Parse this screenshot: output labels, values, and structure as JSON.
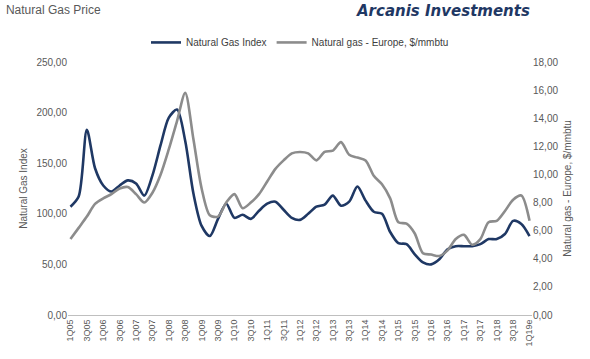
{
  "chart_data": {
    "type": "line",
    "title": "Natural Gas Price",
    "annotations": [
      {
        "text": "Arcanis Investments"
      }
    ],
    "y_label": "Natural Gas Index",
    "y2_label": "Natural gas - Europe, $/mmbtu",
    "categories": [
      "1Q05",
      null,
      "3Q05",
      null,
      "1Q06",
      null,
      "3Q06",
      null,
      "1Q07",
      null,
      "3Q07",
      null,
      "1Q08",
      null,
      "3Q08",
      null,
      "1Q09",
      null,
      "3Q09",
      null,
      "1Q10",
      null,
      "3Q10",
      null,
      "1Q11",
      null,
      "3Q11",
      null,
      "1Q12",
      null,
      "3Q12",
      null,
      "1Q13",
      null,
      "3Q13",
      null,
      "1Q14",
      null,
      "3Q14",
      null,
      "1Q15",
      null,
      "3Q15",
      null,
      "1Q16",
      null,
      "3Q16",
      null,
      "1Q17",
      null,
      "3Q17",
      null,
      "1Q18",
      null,
      "3Q18",
      null,
      "1Q19e"
    ],
    "series": [
      {
        "name": "Natural Gas Index",
        "color": "#1f3864",
        "line_style": "solid",
        "values": [
          107,
          117,
          183,
          145,
          128,
          122,
          128,
          133,
          130,
          118,
          138,
          168,
          195,
          203,
          172,
          120,
          88,
          78,
          95,
          110,
          96,
          99,
          95,
          103,
          110,
          112,
          104,
          96,
          94,
          100,
          107,
          109,
          118,
          108,
          112,
          127,
          113,
          102,
          100,
          82,
          71,
          70,
          60,
          52,
          50,
          55,
          65,
          68,
          68,
          68,
          70,
          75,
          75,
          80,
          93,
          90,
          78
        ]
      },
      {
        "name": "Natural gas - Europe, $/mmbtu",
        "color": "#8c8c8c",
        "line_style": "solid",
        "axis": "y2",
        "values": [
          5.4,
          6.2,
          7.0,
          7.9,
          8.3,
          8.6,
          9.0,
          9.1,
          8.6,
          8.0,
          8.7,
          10.0,
          11.8,
          13.8,
          15.8,
          12.5,
          9.0,
          7.1,
          7.0,
          8.0,
          8.6,
          7.6,
          8.0,
          8.6,
          9.5,
          10.4,
          11.0,
          11.5,
          11.6,
          11.5,
          11.0,
          11.6,
          11.7,
          12.3,
          11.4,
          11.2,
          11.0,
          9.9,
          9.3,
          8.3,
          6.6,
          6.5,
          5.8,
          4.4,
          4.3,
          4.2,
          4.6,
          5.4,
          5.7,
          5.0,
          5.4,
          6.6,
          6.7,
          7.4,
          8.2,
          8.5,
          6.7
        ]
      }
    ],
    "ylim": [
      0,
      250
    ],
    "yticks": [
      {
        "value": 0,
        "label": "0,00"
      },
      {
        "value": 50,
        "label": "50,00"
      },
      {
        "value": 100,
        "label": "100,00"
      },
      {
        "value": 150,
        "label": "150,00"
      },
      {
        "value": 200,
        "label": "200,00"
      },
      {
        "value": 250,
        "label": "250,00"
      }
    ],
    "y2lim": [
      0,
      18
    ],
    "y2ticks": [
      {
        "value": 0,
        "label": "0,00"
      },
      {
        "value": 2,
        "label": "2,00"
      },
      {
        "value": 4,
        "label": "4,00"
      },
      {
        "value": 6,
        "label": "6,00"
      },
      {
        "value": 8,
        "label": "8,00"
      },
      {
        "value": 10,
        "label": "10,00"
      },
      {
        "value": 12,
        "label": "12,00"
      },
      {
        "value": 14,
        "label": "14,00"
      },
      {
        "value": 16,
        "label": "16,00"
      },
      {
        "value": 18,
        "label": "18,00"
      }
    ],
    "grid": false,
    "legend": "top"
  }
}
